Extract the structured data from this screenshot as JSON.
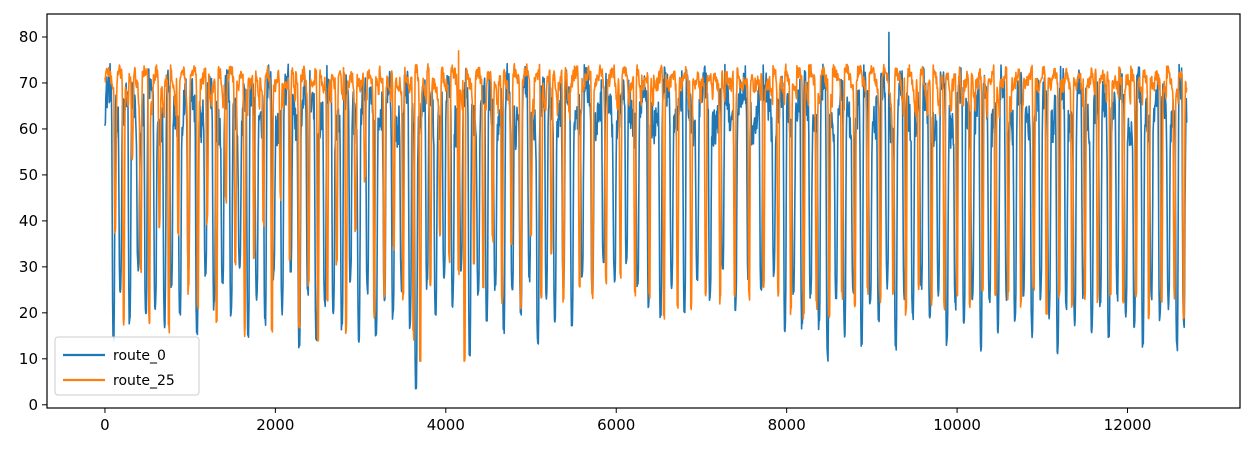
{
  "chart_data": {
    "type": "line",
    "title": "",
    "xlabel": "",
    "ylabel": "",
    "xlim": [
      -680,
      13320
    ],
    "ylim": [
      -0.7,
      85
    ],
    "x_ticks": [
      0,
      2000,
      4000,
      6000,
      8000,
      10000,
      12000
    ],
    "y_ticks": [
      0,
      10,
      20,
      30,
      40,
      50,
      60,
      70,
      80
    ],
    "x_tick_labels": [
      "0",
      "2000",
      "4000",
      "6000",
      "8000",
      "10000",
      "12000"
    ],
    "y_tick_labels": [
      "0",
      "10",
      "20",
      "30",
      "40",
      "50",
      "60",
      "70",
      "80"
    ],
    "n_points": 12700,
    "legend_position": "lower-left",
    "grid": false,
    "series": [
      {
        "name": "route_0",
        "color": "#1f77b4",
        "summary": {
          "typical_high": 70,
          "typical_mid": 60,
          "min": 3.5,
          "max": 81,
          "min_at_x": 3650,
          "max_at_x": 9200
        },
        "dips": [
          [
            100,
            15
          ],
          [
            180,
            25
          ],
          [
            290,
            18
          ],
          [
            390,
            30
          ],
          [
            480,
            20
          ],
          [
            590,
            22
          ],
          [
            700,
            18
          ],
          [
            780,
            25
          ],
          [
            880,
            20
          ],
          [
            980,
            30
          ],
          [
            1080,
            15
          ],
          [
            1180,
            28
          ],
          [
            1280,
            22
          ],
          [
            1380,
            26
          ],
          [
            1480,
            20
          ],
          [
            1580,
            30
          ],
          [
            1680,
            16
          ],
          [
            1780,
            24
          ],
          [
            1880,
            18
          ],
          [
            1980,
            28
          ],
          [
            2080,
            21
          ],
          [
            2180,
            30
          ],
          [
            2280,
            13
          ],
          [
            2380,
            25
          ],
          [
            2480,
            14
          ],
          [
            2580,
            22
          ],
          [
            2680,
            20
          ],
          [
            2780,
            17
          ],
          [
            2880,
            28
          ],
          [
            2980,
            15
          ],
          [
            3080,
            25
          ],
          [
            3180,
            14
          ],
          [
            3280,
            24
          ],
          [
            3380,
            20
          ],
          [
            3480,
            26
          ],
          [
            3580,
            18
          ],
          [
            3650,
            3.5
          ],
          [
            3780,
            26
          ],
          [
            3880,
            20
          ],
          [
            3980,
            28
          ],
          [
            4080,
            22
          ],
          [
            4180,
            30
          ],
          [
            4280,
            12
          ],
          [
            4380,
            24
          ],
          [
            4480,
            19
          ],
          [
            4580,
            26
          ],
          [
            4680,
            17
          ],
          [
            4780,
            25
          ],
          [
            4880,
            20
          ],
          [
            4980,
            28
          ],
          [
            5080,
            14
          ],
          [
            5180,
            24
          ],
          [
            5280,
            19
          ],
          [
            5380,
            26
          ],
          [
            5480,
            18
          ],
          [
            5600,
            28
          ],
          [
            5720,
            24
          ],
          [
            5850,
            31
          ],
          [
            5980,
            28
          ],
          [
            6120,
            32
          ],
          [
            6250,
            26
          ],
          [
            6380,
            22
          ],
          [
            6520,
            20
          ],
          [
            6650,
            25
          ],
          [
            6800,
            21
          ],
          [
            6950,
            28
          ],
          [
            7100,
            24
          ],
          [
            7250,
            30
          ],
          [
            7400,
            22
          ],
          [
            7550,
            27
          ],
          [
            7700,
            24
          ],
          [
            7850,
            29
          ],
          [
            7980,
            17
          ],
          [
            8080,
            25
          ],
          [
            8180,
            18
          ],
          [
            8280,
            24
          ],
          [
            8380,
            17
          ],
          [
            8480,
            11
          ],
          [
            8580,
            22
          ],
          [
            8680,
            16
          ],
          [
            8780,
            25
          ],
          [
            8880,
            14
          ],
          [
            8980,
            22
          ],
          [
            9080,
            18
          ],
          [
            9180,
            26
          ],
          [
            9280,
            13
          ],
          [
            9380,
            24
          ],
          [
            9480,
            20
          ],
          [
            9580,
            26
          ],
          [
            9680,
            18
          ],
          [
            9780,
            25
          ],
          [
            9880,
            14
          ],
          [
            9980,
            22
          ],
          [
            10080,
            18
          ],
          [
            10180,
            24
          ],
          [
            10280,
            13
          ],
          [
            10380,
            22
          ],
          [
            10480,
            17
          ],
          [
            10580,
            24
          ],
          [
            10680,
            19
          ],
          [
            10780,
            25
          ],
          [
            10880,
            16
          ],
          [
            10980,
            24
          ],
          [
            11080,
            20
          ],
          [
            11180,
            12
          ],
          [
            11280,
            22
          ],
          [
            11380,
            18
          ],
          [
            11480,
            24
          ],
          [
            11580,
            16
          ],
          [
            11680,
            22
          ],
          [
            11780,
            14
          ],
          [
            11880,
            24
          ],
          [
            11980,
            20
          ],
          [
            12080,
            18
          ],
          [
            12180,
            14
          ],
          [
            12280,
            24
          ],
          [
            12380,
            19
          ],
          [
            12480,
            22
          ],
          [
            12580,
            13
          ],
          [
            12660,
            18
          ]
        ]
      },
      {
        "name": "route_25",
        "color": "#ff7f0e",
        "summary": {
          "typical_high": 71,
          "min": 9.5,
          "max": 77,
          "min_at_x": 4220,
          "max_at_x": 4150
        },
        "dips": [
          [
            120,
            38
          ],
          [
            220,
            18
          ],
          [
            320,
            53
          ],
          [
            420,
            30
          ],
          [
            520,
            19
          ],
          [
            640,
            40
          ],
          [
            750,
            17
          ],
          [
            860,
            38
          ],
          [
            980,
            25
          ],
          [
            1090,
            22
          ],
          [
            1200,
            40
          ],
          [
            1310,
            17
          ],
          [
            1420,
            45
          ],
          [
            1530,
            31
          ],
          [
            1640,
            16
          ],
          [
            1750,
            33
          ],
          [
            1860,
            40
          ],
          [
            1960,
            17
          ],
          [
            2060,
            45
          ],
          [
            2170,
            32
          ],
          [
            2280,
            16
          ],
          [
            2390,
            26
          ],
          [
            2500,
            13.5
          ],
          [
            2610,
            24
          ],
          [
            2720,
            31
          ],
          [
            2830,
            17
          ],
          [
            2940,
            37
          ],
          [
            3050,
            49
          ],
          [
            3160,
            19
          ],
          [
            3280,
            24
          ],
          [
            3390,
            34
          ],
          [
            3500,
            24
          ],
          [
            3620,
            15
          ],
          [
            3700,
            10.5
          ],
          [
            3820,
            27
          ],
          [
            3930,
            38
          ],
          [
            4040,
            32
          ],
          [
            4150,
            28
          ],
          [
            4220,
            9.5
          ],
          [
            4330,
            32
          ],
          [
            4440,
            26
          ],
          [
            4550,
            36
          ],
          [
            4660,
            23
          ],
          [
            4770,
            34
          ],
          [
            4880,
            21
          ],
          [
            5000,
            37
          ],
          [
            5120,
            23
          ],
          [
            5240,
            34
          ],
          [
            5380,
            23
          ],
          [
            5570,
            25
          ],
          [
            5720,
            24
          ],
          [
            5880,
            27
          ],
          [
            6050,
            28
          ],
          [
            6220,
            25
          ],
          [
            6390,
            23
          ],
          [
            6560,
            20
          ],
          [
            6720,
            22
          ],
          [
            6880,
            21
          ],
          [
            7050,
            24
          ],
          [
            7220,
            23
          ],
          [
            7390,
            25
          ],
          [
            7560,
            24
          ],
          [
            7730,
            26
          ],
          [
            7900,
            25
          ],
          [
            8050,
            21
          ],
          [
            8200,
            20
          ],
          [
            8350,
            22
          ],
          [
            8500,
            20
          ],
          [
            8650,
            24
          ],
          [
            8800,
            22
          ],
          [
            8950,
            25
          ],
          [
            9100,
            23
          ],
          [
            9250,
            24
          ],
          [
            9400,
            21
          ],
          [
            9550,
            25
          ],
          [
            9700,
            23
          ],
          [
            9850,
            22
          ],
          [
            10000,
            24
          ],
          [
            10150,
            22
          ],
          [
            10300,
            25
          ],
          [
            10450,
            23
          ],
          [
            10600,
            24
          ],
          [
            10750,
            22
          ],
          [
            10900,
            25
          ],
          [
            11050,
            21
          ],
          [
            11200,
            24
          ],
          [
            11350,
            22
          ],
          [
            11500,
            24
          ],
          [
            11650,
            23
          ],
          [
            11800,
            25
          ],
          [
            11950,
            22
          ],
          [
            12100,
            24
          ],
          [
            12250,
            20
          ],
          [
            12400,
            22
          ],
          [
            12550,
            24
          ],
          [
            12660,
            20
          ]
        ]
      }
    ]
  }
}
